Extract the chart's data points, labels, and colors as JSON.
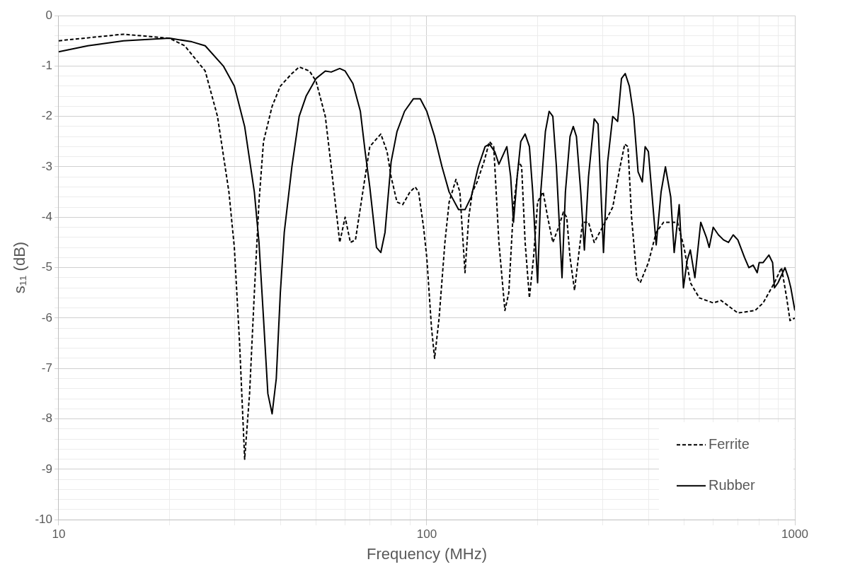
{
  "chart_data": {
    "type": "line",
    "xlabel": "Frequency (MHz)",
    "ylabel": "s₁₁ (dB)",
    "log": "x",
    "grid": true,
    "legend": "bottom right",
    "marker": "none",
    "xlim": [
      10,
      1000
    ],
    "xticks": [
      10,
      {
        "value": 20,
        "label": null
      },
      {
        "value": 30,
        "label": null
      },
      {
        "value": 40,
        "label": null
      },
      {
        "value": 50,
        "label": null
      },
      {
        "value": 60,
        "label": null
      },
      {
        "value": 70,
        "label": null
      },
      {
        "value": 80,
        "label": null
      },
      {
        "value": 90,
        "label": null
      },
      100,
      {
        "value": 200,
        "label": null
      },
      {
        "value": 300,
        "label": null
      },
      {
        "value": 400,
        "label": null
      },
      {
        "value": 500,
        "label": null
      },
      {
        "value": 600,
        "label": null
      },
      {
        "value": 700,
        "label": null
      },
      {
        "value": 800,
        "label": null
      },
      {
        "value": 900,
        "label": null
      },
      1000
    ],
    "ylim": [
      -10,
      0
    ],
    "yticks": [
      0,
      {
        "value": -0.2,
        "label": null
      },
      {
        "value": -0.4,
        "label": null
      },
      {
        "value": -0.6,
        "label": null
      },
      {
        "value": -0.8,
        "label": null
      },
      -1,
      {
        "value": -1.2,
        "label": null
      },
      {
        "value": -1.4,
        "label": null
      },
      {
        "value": -1.6,
        "label": null
      },
      {
        "value": -1.8,
        "label": null
      },
      -2,
      {
        "value": -2.2,
        "label": null
      },
      {
        "value": -2.4,
        "label": null
      },
      {
        "value": -2.6,
        "label": null
      },
      {
        "value": -2.8,
        "label": null
      },
      -3,
      {
        "value": -3.2,
        "label": null
      },
      {
        "value": -3.4,
        "label": null
      },
      {
        "value": -3.6,
        "label": null
      },
      {
        "value": -3.8,
        "label": null
      },
      -4,
      {
        "value": -4.2,
        "label": null
      },
      {
        "value": -4.4,
        "label": null
      },
      {
        "value": -4.6,
        "label": null
      },
      {
        "value": -4.8,
        "label": null
      },
      -5,
      {
        "value": -5.2,
        "label": null
      },
      {
        "value": -5.4,
        "label": null
      },
      {
        "value": -5.6,
        "label": null
      },
      {
        "value": -5.8,
        "label": null
      },
      -6,
      {
        "value": -6.2,
        "label": null
      },
      {
        "value": -6.4,
        "label": null
      },
      {
        "value": -6.6,
        "label": null
      },
      {
        "value": -6.8,
        "label": null
      },
      -7,
      {
        "value": -7.2,
        "label": null
      },
      {
        "value": -7.4,
        "label": null
      },
      {
        "value": -7.6,
        "label": null
      },
      {
        "value": -7.8,
        "label": null
      },
      -8,
      {
        "value": -8.2,
        "label": null
      },
      {
        "value": -8.4,
        "label": null
      },
      {
        "value": -8.6,
        "label": null
      },
      {
        "value": -8.8,
        "label": null
      },
      -9,
      {
        "value": -9.2,
        "label": null
      },
      {
        "value": -9.4,
        "label": null
      },
      {
        "value": -9.6,
        "label": null
      },
      {
        "value": -9.8,
        "label": null
      },
      -10
    ],
    "series": [
      {
        "name": "Ferrite",
        "color": "#000000",
        "line_style": "dashed",
        "x": [
          10,
          15,
          20,
          22,
          25,
          27,
          29,
          30,
          31,
          32,
          33,
          34,
          35,
          36,
          38,
          40,
          43,
          45,
          48,
          50,
          53,
          55,
          57,
          58,
          60,
          62,
          64,
          67,
          70,
          75,
          78,
          80,
          83,
          86,
          90,
          93,
          95,
          98,
          100,
          103,
          105,
          108,
          112,
          115,
          120,
          123,
          127,
          130,
          133,
          137,
          143,
          148,
          152,
          157,
          163,
          167,
          172,
          178,
          181,
          185,
          190,
          195,
          200,
          207,
          213,
          220,
          228,
          235,
          240,
          245,
          252,
          260,
          265,
          275,
          285,
          300,
          320,
          335,
          345,
          352,
          360,
          372,
          380,
          400,
          420,
          440,
          460,
          480,
          500,
          520,
          550,
          600,
          630,
          700,
          780,
          820,
          880,
          920,
          950,
          970,
          1000
        ],
        "values": [
          -0.5,
          -0.37,
          -0.45,
          -0.6,
          -1.1,
          -2.0,
          -3.5,
          -4.6,
          -6.5,
          -8.8,
          -7.5,
          -5.5,
          -3.7,
          -2.5,
          -1.8,
          -1.4,
          -1.15,
          -1.02,
          -1.1,
          -1.3,
          -2.0,
          -3.0,
          -4.0,
          -4.5,
          -4.0,
          -4.5,
          -4.45,
          -3.5,
          -2.6,
          -2.35,
          -2.7,
          -3.2,
          -3.7,
          -3.75,
          -3.5,
          -3.4,
          -3.5,
          -4.2,
          -4.8,
          -6.2,
          -6.8,
          -6.0,
          -4.5,
          -3.7,
          -3.25,
          -3.5,
          -5.1,
          -4.0,
          -3.5,
          -3.3,
          -2.9,
          -2.5,
          -2.6,
          -4.5,
          -5.85,
          -5.5,
          -3.8,
          -2.9,
          -3.0,
          -4.5,
          -5.6,
          -4.8,
          -3.7,
          -3.5,
          -4.0,
          -4.5,
          -4.2,
          -3.9,
          -4.0,
          -4.8,
          -5.45,
          -4.6,
          -4.1,
          -4.1,
          -4.5,
          -4.2,
          -3.8,
          -3.0,
          -2.55,
          -2.6,
          -4.0,
          -5.2,
          -5.3,
          -4.9,
          -4.3,
          -4.1,
          -4.1,
          -4.1,
          -4.6,
          -5.3,
          -5.6,
          -5.7,
          -5.65,
          -5.9,
          -5.85,
          -5.7,
          -5.3,
          -5.0,
          -5.6,
          -6.05,
          -6.0
        ]
      },
      {
        "name": "Rubber",
        "color": "#000000",
        "line_style": "solid",
        "x": [
          10,
          12,
          15,
          20,
          23,
          25,
          28,
          30,
          32,
          34,
          35,
          36,
          37,
          38,
          39,
          40,
          41,
          43,
          45,
          47,
          50,
          53,
          55,
          58,
          60,
          63,
          66,
          68,
          70,
          73,
          75,
          77,
          80,
          83,
          87,
          92,
          96,
          100,
          105,
          110,
          115,
          122,
          127,
          132,
          138,
          144,
          148,
          153,
          157,
          165,
          169,
          172,
          176,
          180,
          185,
          190,
          194,
          200,
          204,
          210,
          215,
          220,
          225,
          233,
          238,
          245,
          250,
          255,
          262,
          268,
          275,
          285,
          292,
          302,
          310,
          320,
          330,
          338,
          346,
          355,
          365,
          375,
          385,
          392,
          400,
          420,
          433,
          445,
          460,
          470,
          485,
          498,
          510,
          520,
          535,
          555,
          575,
          585,
          600,
          620,
          640,
          660,
          680,
          700,
          730,
          750,
          770,
          790,
          800,
          820,
          850,
          870,
          880,
          900,
          940,
          960,
          975,
          1000
        ],
        "values": [
          -0.72,
          -0.6,
          -0.5,
          -0.45,
          -0.52,
          -0.6,
          -1.0,
          -1.4,
          -2.2,
          -3.5,
          -4.5,
          -6.0,
          -7.5,
          -7.9,
          -7.2,
          -5.5,
          -4.3,
          -3.0,
          -2.0,
          -1.6,
          -1.25,
          -1.1,
          -1.12,
          -1.05,
          -1.1,
          -1.35,
          -1.9,
          -2.7,
          -3.4,
          -4.6,
          -4.7,
          -4.3,
          -2.9,
          -2.3,
          -1.9,
          -1.65,
          -1.65,
          -1.9,
          -2.4,
          -3.0,
          -3.5,
          -3.85,
          -3.85,
          -3.6,
          -3.0,
          -2.6,
          -2.55,
          -2.7,
          -2.95,
          -2.6,
          -3.2,
          -4.1,
          -3.2,
          -2.5,
          -2.35,
          -2.6,
          -3.5,
          -5.3,
          -3.5,
          -2.3,
          -1.9,
          -2.0,
          -3.0,
          -5.2,
          -3.5,
          -2.4,
          -2.2,
          -2.4,
          -3.5,
          -4.65,
          -3.2,
          -2.05,
          -2.15,
          -4.7,
          -2.9,
          -2.0,
          -2.1,
          -1.25,
          -1.15,
          -1.4,
          -2.0,
          -3.1,
          -3.3,
          -2.6,
          -2.7,
          -4.55,
          -3.5,
          -3.0,
          -3.6,
          -4.7,
          -3.75,
          -5.4,
          -4.85,
          -4.65,
          -5.2,
          -4.1,
          -4.4,
          -4.6,
          -4.2,
          -4.35,
          -4.45,
          -4.5,
          -4.35,
          -4.45,
          -4.8,
          -5.0,
          -4.95,
          -5.1,
          -4.9,
          -4.9,
          -4.75,
          -4.9,
          -5.4,
          -5.3,
          -5.0,
          -5.2,
          -5.4,
          -5.85
        ]
      }
    ]
  }
}
